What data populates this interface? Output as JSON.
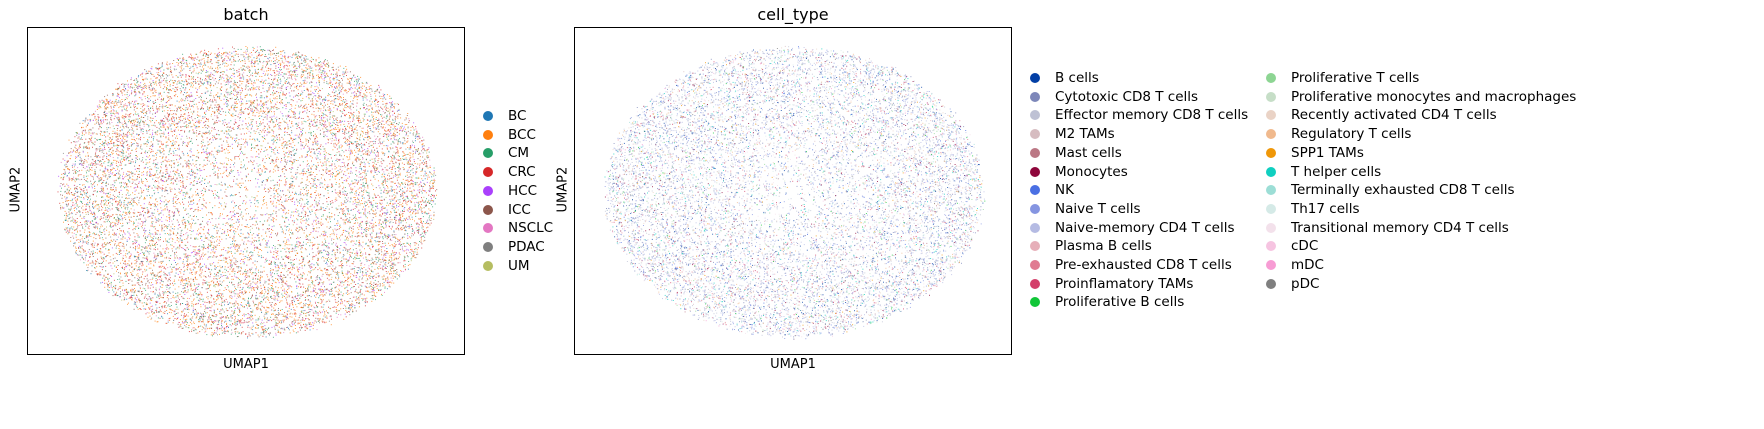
{
  "chart_data": [
    {
      "type": "scatter",
      "title": "batch",
      "xlabel": "UMAP1",
      "ylabel": "UMAP2",
      "grid": false,
      "legend_placement": "right",
      "categories": [
        "BC",
        "BCC",
        "CM",
        "CRC",
        "HCC",
        "ICC",
        "NSCLC",
        "PDAC",
        "UM"
      ],
      "colors": [
        "#1f77b4",
        "#ff7f0e",
        "#279e68",
        "#d62728",
        "#aa40fc",
        "#8c564b",
        "#e377c2",
        "#7f7f7f",
        "#b5bd61"
      ],
      "weights": [
        0.06,
        0.28,
        0.14,
        0.18,
        0.06,
        0.12,
        0.07,
        0.05,
        0.04
      ]
    },
    {
      "type": "scatter",
      "title": "cell_type",
      "xlabel": "UMAP1",
      "ylabel": "UMAP2",
      "grid": false,
      "legend_placement": "right",
      "categories": [
        "B cells",
        "Cytotoxic CD8 T cells",
        "Effector memory CD8 T cells",
        "M2 TAMs",
        "Mast cells",
        "Monocytes",
        "NK",
        "Naive T cells",
        "Naive-memory CD4 T cells",
        "Plasma B cells",
        "Pre-exhausted CD8 T cells",
        "Proinflamatory TAMs",
        "Proliferative B cells",
        "Proliferative T cells",
        "Proliferative monocytes and macrophages",
        "Recently activated CD4 T cells",
        "Regulatory T cells",
        "SPP1 TAMs",
        "T helper cells",
        "Terminally exhausted CD8 T cells",
        "Th17 cells",
        "Transitional memory CD4 T cells",
        "cDC",
        "mDC",
        "pDC"
      ],
      "colors": [
        "#023fa5",
        "#7d87b9",
        "#bec1d4",
        "#d6bcc0",
        "#bb7784",
        "#8e063b",
        "#4a6fe3",
        "#8595e1",
        "#b5bbe3",
        "#e6afb9",
        "#e07b91",
        "#d33f6a",
        "#11c638",
        "#8dd593",
        "#c6dec7",
        "#ead3c6",
        "#f0b98d",
        "#ef9708",
        "#0fcfc0",
        "#9cded6",
        "#d5eae7",
        "#f3e1eb",
        "#f6c4e1",
        "#f79cd4",
        "#7f7f7f"
      ],
      "weights": [
        0.05,
        0.12,
        0.16,
        0.02,
        0.01,
        0.02,
        0.03,
        0.09,
        0.16,
        0.02,
        0.03,
        0.02,
        0.01,
        0.02,
        0.01,
        0.03,
        0.04,
        0.01,
        0.03,
        0.03,
        0.03,
        0.03,
        0.01,
        0.01,
        0.01
      ]
    }
  ]
}
